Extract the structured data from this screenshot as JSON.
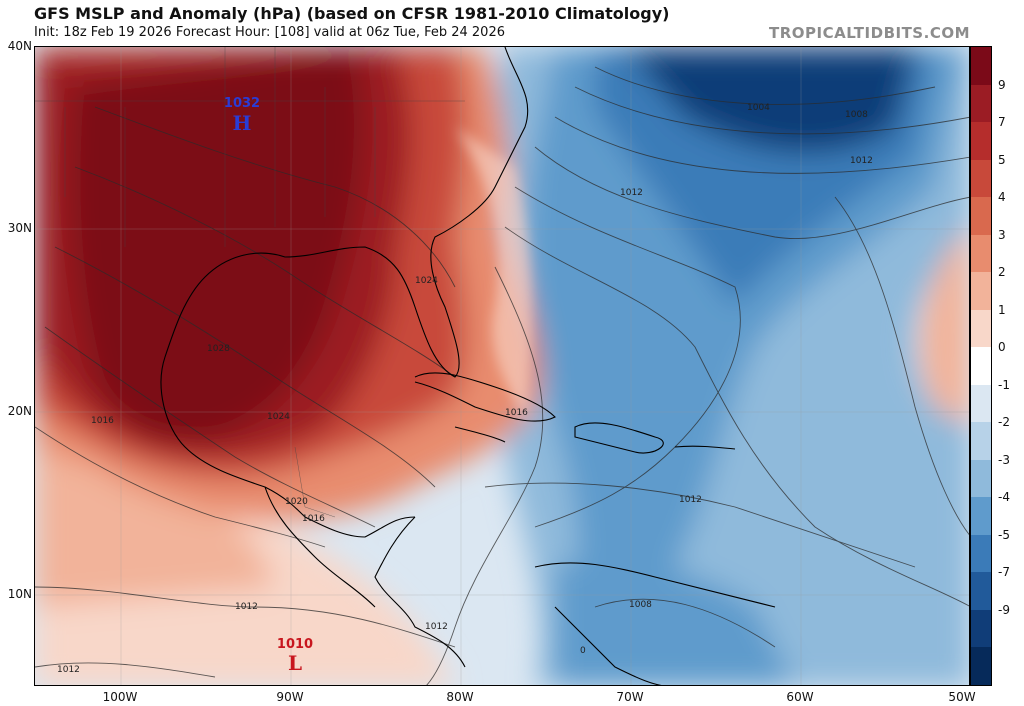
{
  "header": {
    "title": "GFS MSLP and Anomaly (hPa) (based on CFSR 1981-2010 Climatology)",
    "subtitle": "Init: 18z Feb 19 2026   Forecast Hour: [108]   valid at 06z Tue, Feb 24 2026",
    "site": "TROPICALTIDBITS.COM"
  },
  "axes": {
    "lat_labels": [
      "40N",
      "30N",
      "20N",
      "10N"
    ],
    "lon_labels": [
      "100W",
      "90W",
      "80W",
      "70W",
      "60W",
      "50W"
    ]
  },
  "colorbar": {
    "labels": [
      "9",
      "7",
      "5",
      "4",
      "3",
      "2",
      "1",
      "0",
      "-1",
      "-2",
      "-3",
      "-4",
      "-5",
      "-7",
      "-9"
    ],
    "colors": [
      "#7b0a18",
      "#9b1c24",
      "#b52d2c",
      "#c8493a",
      "#d9694e",
      "#e88c6e",
      "#f2b39a",
      "#f8d7c9",
      "#ffffff",
      "#dbe7f2",
      "#b7d2e8",
      "#8fbadb",
      "#5f9bcc",
      "#3b7bb8",
      "#215a9a",
      "#103d78",
      "#062a5a"
    ]
  },
  "systems": [
    {
      "label": "1032",
      "letter": "H",
      "color": "#2a3cd6"
    },
    {
      "label": "1010",
      "letter": "L",
      "color": "#c8161e"
    }
  ],
  "contour_labels": [
    "1004",
    "1008",
    "1012",
    "1012",
    "1024",
    "1028",
    "1024",
    "1016",
    "1016",
    "1020",
    "1016",
    "1012",
    "1012",
    "1012",
    "1008",
    "1012",
    "0"
  ],
  "icons": {
    "high": "high-pressure-symbol",
    "low": "low-pressure-symbol"
  }
}
